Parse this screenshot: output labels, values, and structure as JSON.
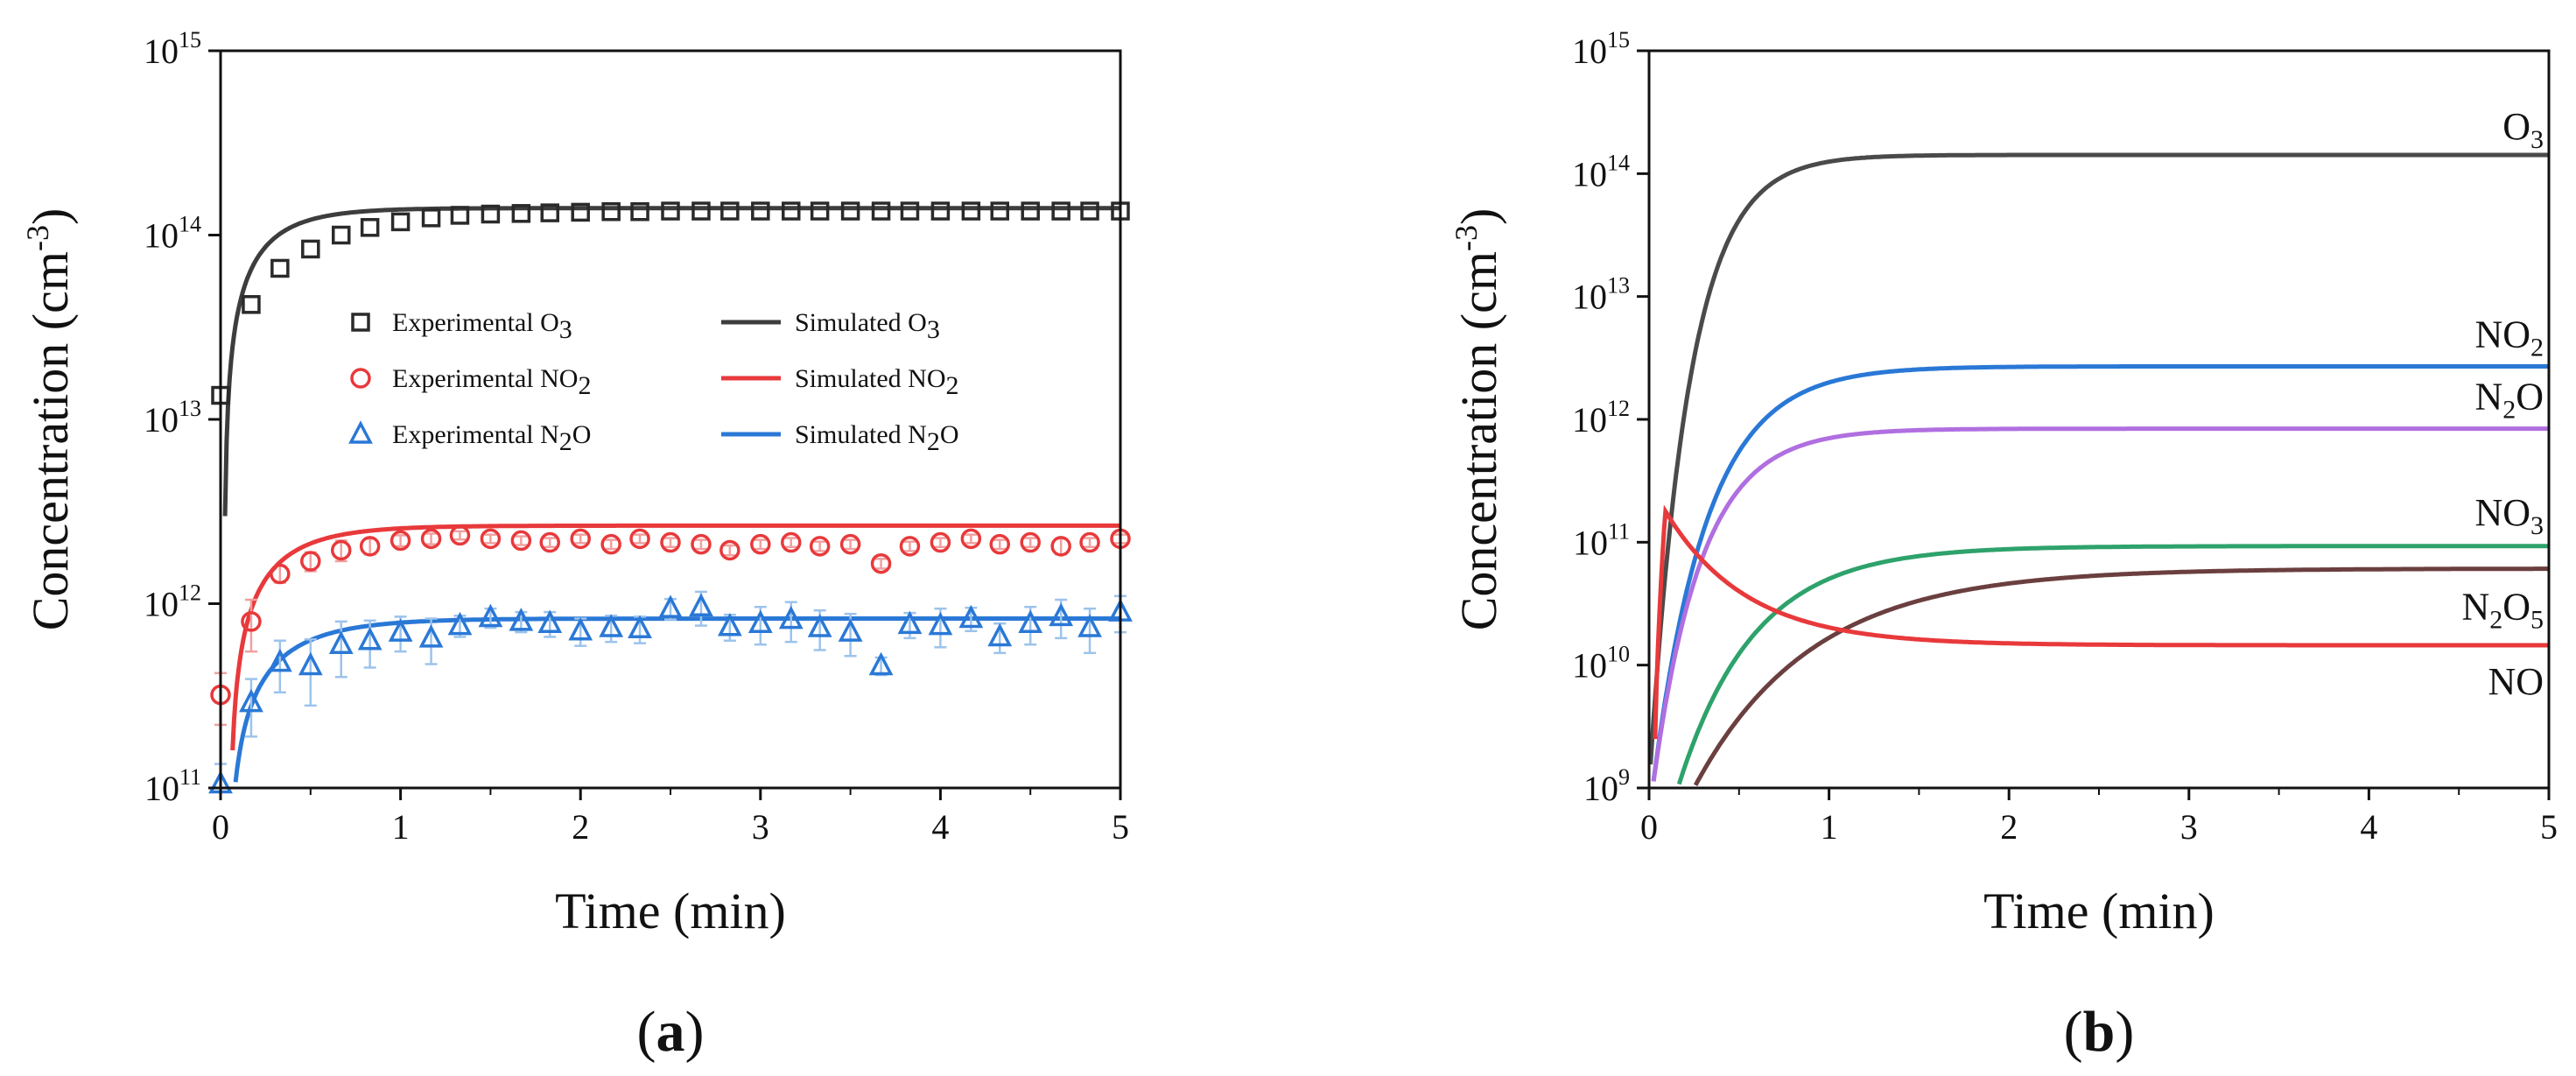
{
  "chart_data": [
    {
      "id": "a",
      "type": "scatter+line",
      "panel_label_left": "(",
      "panel_label_letter": "a",
      "panel_label_right": ")",
      "xlabel": "Time (min)",
      "ylabel_main": "Concentration (cm",
      "ylabel_sup": "-3",
      "ylabel_end": ")",
      "xlim": [
        0,
        5
      ],
      "ylim": [
        100000000000.0,
        1000000000000000.0
      ],
      "yscale": "log",
      "x_ticks": [
        0,
        1,
        2,
        3,
        4,
        5
      ],
      "y_tick_exponents": [
        11,
        12,
        13,
        14,
        15
      ],
      "y_tick_base": "10",
      "legend_position": "center",
      "markers": [
        {
          "name": "Experimental O3",
          "label_main": "Experimental O",
          "label_sub": "3",
          "marker": "square",
          "color": "#2a2a2a",
          "x": [
            0,
            0.17,
            0.33,
            0.5,
            0.67,
            0.83,
            1.0,
            1.17,
            1.33,
            1.5,
            1.67,
            1.83,
            2.0,
            2.17,
            2.33,
            2.5,
            2.67,
            2.83,
            3.0,
            3.17,
            3.33,
            3.5,
            3.67,
            3.83,
            4.0,
            4.17,
            4.33,
            4.5,
            4.67,
            4.83,
            5.0
          ],
          "y": [
            13500000000000.0,
            42000000000000.0,
            66000000000000.0,
            84000000000000.0,
            100000000000000.0,
            110000000000000.0,
            118000000000000.0,
            124000000000000.0,
            128000000000000.0,
            130000000000000.0,
            131000000000000.0,
            132000000000000.0,
            133000000000000.0,
            134000000000000.0,
            134000000000000.0,
            135000000000000.0,
            135000000000000.0,
            135000000000000.0,
            135000000000000.0,
            135000000000000.0,
            135000000000000.0,
            135000000000000.0,
            135000000000000.0,
            135000000000000.0,
            135000000000000.0,
            135000000000000.0,
            135000000000000.0,
            135000000000000.0,
            135000000000000.0,
            135000000000000.0,
            135000000000000.0
          ]
        },
        {
          "name": "Experimental NO2",
          "label_main": "Experimental NO",
          "label_sub": "2",
          "marker": "circle",
          "color": "#e8393b",
          "x": [
            0,
            0.17,
            0.33,
            0.5,
            0.67,
            0.83,
            1.0,
            1.17,
            1.33,
            1.5,
            1.67,
            1.83,
            2.0,
            2.17,
            2.33,
            2.5,
            2.67,
            2.83,
            3.0,
            3.17,
            3.33,
            3.5,
            3.67,
            3.83,
            4.0,
            4.17,
            4.33,
            4.5,
            4.67,
            4.83,
            5.0
          ],
          "y": [
            320000000000.0,
            800000000000.0,
            1450000000000.0,
            1700000000000.0,
            1950000000000.0,
            2050000000000.0,
            2200000000000.0,
            2250000000000.0,
            2350000000000.0,
            2250000000000.0,
            2200000000000.0,
            2150000000000.0,
            2250000000000.0,
            2100000000000.0,
            2250000000000.0,
            2150000000000.0,
            2100000000000.0,
            1950000000000.0,
            2100000000000.0,
            2150000000000.0,
            2050000000000.0,
            2100000000000.0,
            1650000000000.0,
            2050000000000.0,
            2150000000000.0,
            2250000000000.0,
            2100000000000.0,
            2150000000000.0,
            2050000000000.0,
            2150000000000.0,
            2250000000000.0
          ],
          "err": [
            100000000000.0,
            250000000000.0,
            150000000000.0,
            200000000000.0,
            250000000000.0,
            200000000000.0,
            150000000000.0,
            150000000000.0,
            120000000000.0,
            120000000000.0,
            120000000000.0,
            120000000000.0,
            120000000000.0,
            120000000000.0,
            120000000000.0,
            120000000000.0,
            120000000000.0,
            120000000000.0,
            120000000000.0,
            120000000000.0,
            120000000000.0,
            120000000000.0,
            100000000000.0,
            120000000000.0,
            120000000000.0,
            120000000000.0,
            120000000000.0,
            120000000000.0,
            200000000000.0,
            120000000000.0,
            120000000000.0
          ]
        },
        {
          "name": "Experimental N2O",
          "label_main": "Experimental N",
          "label_sub": "2",
          "label_end": "O",
          "marker": "triangle",
          "color": "#2a78d6",
          "x": [
            0,
            0.17,
            0.33,
            0.5,
            0.67,
            0.83,
            1.0,
            1.17,
            1.33,
            1.5,
            1.67,
            1.83,
            2.0,
            2.17,
            2.33,
            2.5,
            2.67,
            2.83,
            3.0,
            3.17,
            3.33,
            3.5,
            3.67,
            3.83,
            4.0,
            4.17,
            4.33,
            4.5,
            4.67,
            4.83,
            5.0
          ],
          "y": [
            105000000000.0,
            290000000000.0,
            480000000000.0,
            460000000000.0,
            600000000000.0,
            630000000000.0,
            700000000000.0,
            650000000000.0,
            760000000000.0,
            840000000000.0,
            800000000000.0,
            780000000000.0,
            710000000000.0,
            740000000000.0,
            730000000000.0,
            940000000000.0,
            960000000000.0,
            750000000000.0,
            780000000000.0,
            820000000000.0,
            740000000000.0,
            700000000000.0,
            460000000000.0,
            770000000000.0,
            760000000000.0,
            830000000000.0,
            660000000000.0,
            780000000000.0,
            850000000000.0,
            740000000000.0,
            900000000000.0
          ],
          "err": [
            30000000000.0,
            100000000000.0,
            150000000000.0,
            180000000000.0,
            200000000000.0,
            180000000000.0,
            150000000000.0,
            180000000000.0,
            100000000000.0,
            100000000000.0,
            100000000000.0,
            120000000000.0,
            120000000000.0,
            120000000000.0,
            120000000000.0,
            120000000000.0,
            200000000000.0,
            120000000000.0,
            180000000000.0,
            200000000000.0,
            180000000000.0,
            180000000000.0,
            50000000000.0,
            120000000000.0,
            180000000000.0,
            120000000000.0,
            120000000000.0,
            180000000000.0,
            200000000000.0,
            200000000000.0,
            200000000000.0
          ]
        }
      ],
      "lines": [
        {
          "name": "Simulated O3",
          "label_main": "Simulated O",
          "label_sub": "3",
          "color": "#3d3d3d",
          "y0": 100000000000.0,
          "y_inf": 140000000000000.0,
          "tau": 0.24,
          "start": 0.02
        },
        {
          "name": "Simulated NO2",
          "label_main": "Simulated NO",
          "label_sub": "2",
          "color": "#e8393b",
          "y0": 100000000000.0,
          "y_inf": 2650000000000.0,
          "tau": 0.28,
          "start": 0.06
        },
        {
          "name": "Simulated N2O",
          "label_main": "Simulated N",
          "label_sub": "2",
          "label_end": "O",
          "color": "#2a78d6",
          "y0": 100000000000.0,
          "y_inf": 830000000000.0,
          "tau": 0.32,
          "start": 0.08
        }
      ]
    },
    {
      "id": "b",
      "type": "line",
      "panel_label_left": "(",
      "panel_label_letter": "b",
      "panel_label_right": ")",
      "xlabel": "Time (min)",
      "ylabel_main": "Concentration (cm",
      "ylabel_sup": "-3",
      "ylabel_end": ")",
      "xlim": [
        0,
        5
      ],
      "ylim": [
        1000000000.0,
        1000000000000000.0
      ],
      "yscale": "log",
      "x_ticks": [
        0,
        1,
        2,
        3,
        4,
        5
      ],
      "y_tick_exponents": [
        9,
        10,
        11,
        12,
        13,
        14,
        15
      ],
      "y_tick_base": "10",
      "series": [
        {
          "name": "O3",
          "label_main": "O",
          "label_sub": "3",
          "label_end": "",
          "color": "#4a4a4a",
          "kind": "rise",
          "start": 0.0,
          "y0": 1000000000.0,
          "y_inf": 142000000000000.0,
          "tau": 0.22
        },
        {
          "name": "NO2",
          "label_main": "NO",
          "label_sub": "2",
          "label_end": "",
          "color": "#2a78d6",
          "kind": "rise",
          "start": 0.02,
          "y0": 1000000000.0,
          "y_inf": 2700000000000.0,
          "tau": 0.3
        },
        {
          "name": "N2O",
          "label_main": "N",
          "label_sub": "2",
          "label_end": "O",
          "color": "#b06fe0",
          "kind": "rise",
          "start": 0.02,
          "y0": 1000000000.0,
          "y_inf": 840000000000.0,
          "tau": 0.27
        },
        {
          "name": "NO3",
          "label_main": "NO",
          "label_sub": "3",
          "label_end": "",
          "color": "#2ea26b",
          "kind": "rise",
          "start": 0.16,
          "y0": 1000000000.0,
          "y_inf": 93000000000.0,
          "tau": 0.42
        },
        {
          "name": "N2O5",
          "label_main": "N",
          "label_sub": "2",
          "label_end": "O",
          "label_sub2": "5",
          "color": "#6b3f3f",
          "kind": "rise",
          "start": 0.25,
          "y0": 1000000000.0,
          "y_inf": 61000000000.0,
          "tau": 0.65
        },
        {
          "name": "NO",
          "label_main": "NO",
          "label_sub": "",
          "label_end": "",
          "color": "#e8393b",
          "kind": "peak",
          "start": 0.03,
          "peak_x": 0.09,
          "y0": 1000000000.0,
          "peak_y": 180000000000.0,
          "y_inf": 14500000000.0,
          "tau": 0.45
        }
      ]
    }
  ]
}
